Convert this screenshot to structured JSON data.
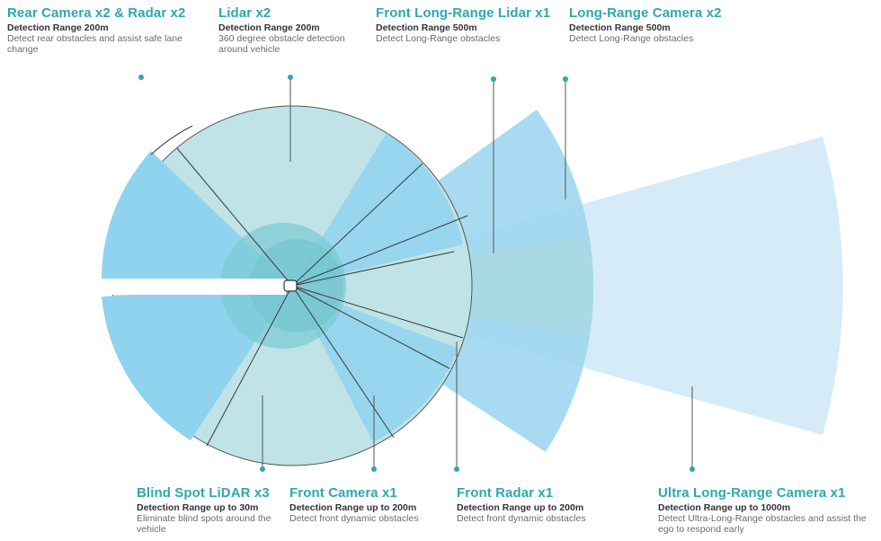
{
  "colors": {
    "accent_teal": "#2fa7b0",
    "lidar_fill": "#bfe3e6",
    "sector_blue": "#8fd3ef",
    "fan_blue": "#cfe8f7",
    "car_fill": "#ffffff"
  },
  "labels": {
    "rear": {
      "title": "Rear Camera x2 & Radar x2",
      "range": "Detection Range  200m",
      "desc": "Detect rear obstacles and assist safe lane change"
    },
    "lidar": {
      "title": "Lidar x2",
      "range": "Detection Range 200m",
      "desc": "360 degree obstacle detection around vehicle"
    },
    "front_lidar": {
      "title": "Front Long-Range Lidar x1",
      "range": "Detection Range 500m",
      "desc": "Detect Long-Range obstacles"
    },
    "long_camera": {
      "title": "Long-Range Camera x2",
      "range": "Detection Range 500m",
      "desc": "Detect Long-Range obstacles"
    },
    "blind_spot": {
      "title": "Blind Spot LiDAR x3",
      "range": "Detection Range up to 30m",
      "desc": "Eliminate blind spots around the vehicle"
    },
    "front_camera": {
      "title": "Front Camera x1",
      "range": "Detection Range up to 200m",
      "desc": "Detect front dynamic obstacles"
    },
    "front_radar": {
      "title": "Front Radar x1",
      "range": "Detection Range up to 200m",
      "desc": "Detect front dynamic obstacles"
    },
    "ultra_camera": {
      "title": "Ultra Long-Range Camera x1",
      "range": "Detection Range up to 1000m",
      "desc": "Detect Ultra-Long-Range obstacles and assist the ego to respond early"
    }
  }
}
